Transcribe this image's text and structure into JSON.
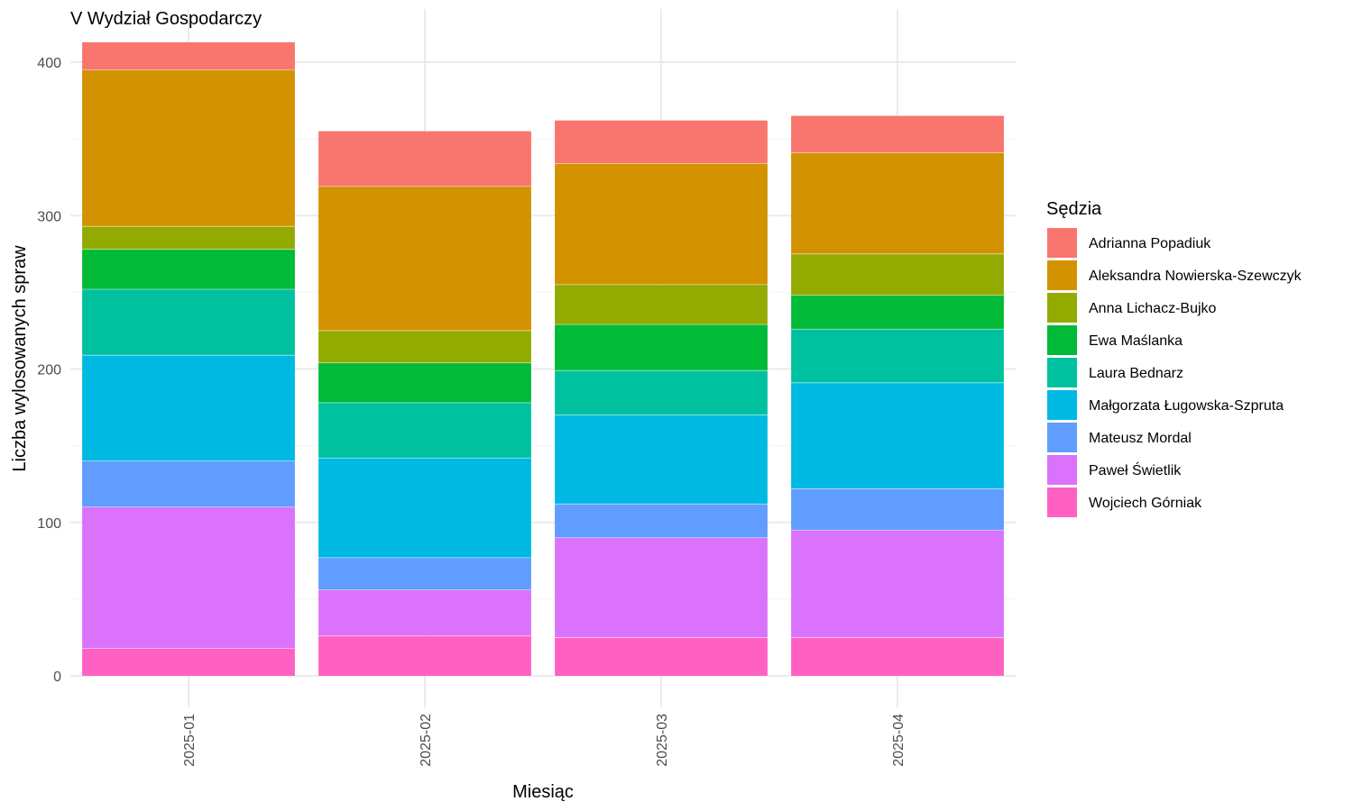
{
  "chart_data": {
    "type": "bar",
    "stacked": true,
    "title": "V Wydział Gospodarczy",
    "xlabel": "Miesiąc",
    "ylabel": "Liczba wylosowanych spraw",
    "categories": [
      "2025-01",
      "2025-02",
      "2025-03",
      "2025-04"
    ],
    "ylim": [
      0,
      420
    ],
    "yticks": [
      0,
      100,
      200,
      300,
      400
    ],
    "grid": true,
    "legend": {
      "title": "Sędzia",
      "position": "right"
    },
    "series": [
      {
        "name": "Wojciech Górniak",
        "color": "#FF61C3",
        "values": [
          18,
          26,
          25,
          25
        ]
      },
      {
        "name": "Paweł Świetlik",
        "color": "#DB72FB",
        "values": [
          92,
          30,
          65,
          70
        ]
      },
      {
        "name": "Mateusz Mordal",
        "color": "#619CFF",
        "values": [
          30,
          21,
          22,
          27
        ]
      },
      {
        "name": "Małgorzata Ługowska-Szpruta",
        "color": "#00B9E3",
        "values": [
          69,
          65,
          58,
          69
        ]
      },
      {
        "name": "Laura Bednarz",
        "color": "#00C19F",
        "values": [
          43,
          36,
          29,
          35
        ]
      },
      {
        "name": "Ewa Maślanka",
        "color": "#00BA38",
        "values": [
          26,
          26,
          30,
          22
        ]
      },
      {
        "name": "Anna Lichacz-Bujko",
        "color": "#93AA00",
        "values": [
          15,
          21,
          26,
          27
        ]
      },
      {
        "name": "Aleksandra Nowierska-Szewczyk",
        "color": "#D39200",
        "values": [
          102,
          94,
          79,
          66
        ]
      },
      {
        "name": "Adrianna Popadiuk",
        "color": "#F8766D",
        "values": [
          18,
          36,
          28,
          24
        ]
      }
    ],
    "legend_order": [
      "Adrianna Popadiuk",
      "Aleksandra Nowierska-Szewczyk",
      "Anna Lichacz-Bujko",
      "Ewa Maślanka",
      "Laura Bednarz",
      "Małgorzata Ługowska-Szpruta",
      "Mateusz Mordal",
      "Paweł Świetlik",
      "Wojciech Górniak"
    ]
  }
}
